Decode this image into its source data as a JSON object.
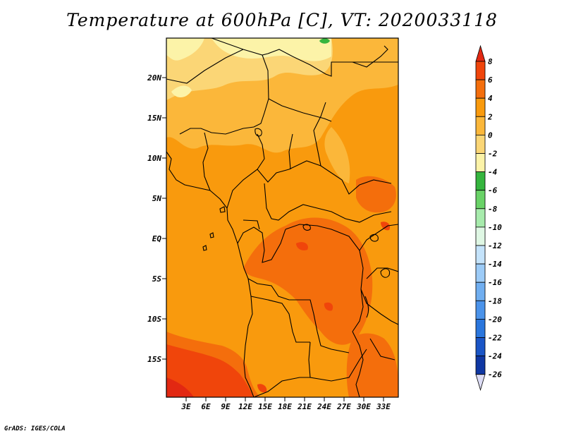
{
  "title": "Temperature at 600hPa [C], VT: 2020033118",
  "credit": "GrADS: IGES/COLA",
  "map": {
    "lat_labels": [
      "20N",
      "15N",
      "10N",
      "5N",
      "EQ",
      "5S",
      "10S",
      "15S"
    ],
    "lon_labels": [
      "3E",
      "6E",
      "9E",
      "12E",
      "15E",
      "18E",
      "21E",
      "24E",
      "27E",
      "30E",
      "33E"
    ]
  },
  "colorbar": {
    "labels": [
      "8",
      "6",
      "4",
      "2",
      "0",
      "-2",
      "-4",
      "-6",
      "-8",
      "-10",
      "-12",
      "-14",
      "-16",
      "-18",
      "-20",
      "-22",
      "-24",
      "-26"
    ],
    "colors": [
      "#e22812",
      "#f0450b",
      "#f46e0c",
      "#f99a0d",
      "#fbb73a",
      "#fbd676",
      "#fcf3a8",
      "#35b53e",
      "#69d267",
      "#a7ebac",
      "#dff7e4",
      "#c4e3fb",
      "#9ccbf7",
      "#70aef0",
      "#4b93ea",
      "#2a76dd",
      "#1a55c6",
      "#0f37a3",
      "#060e58"
    ]
  }
}
